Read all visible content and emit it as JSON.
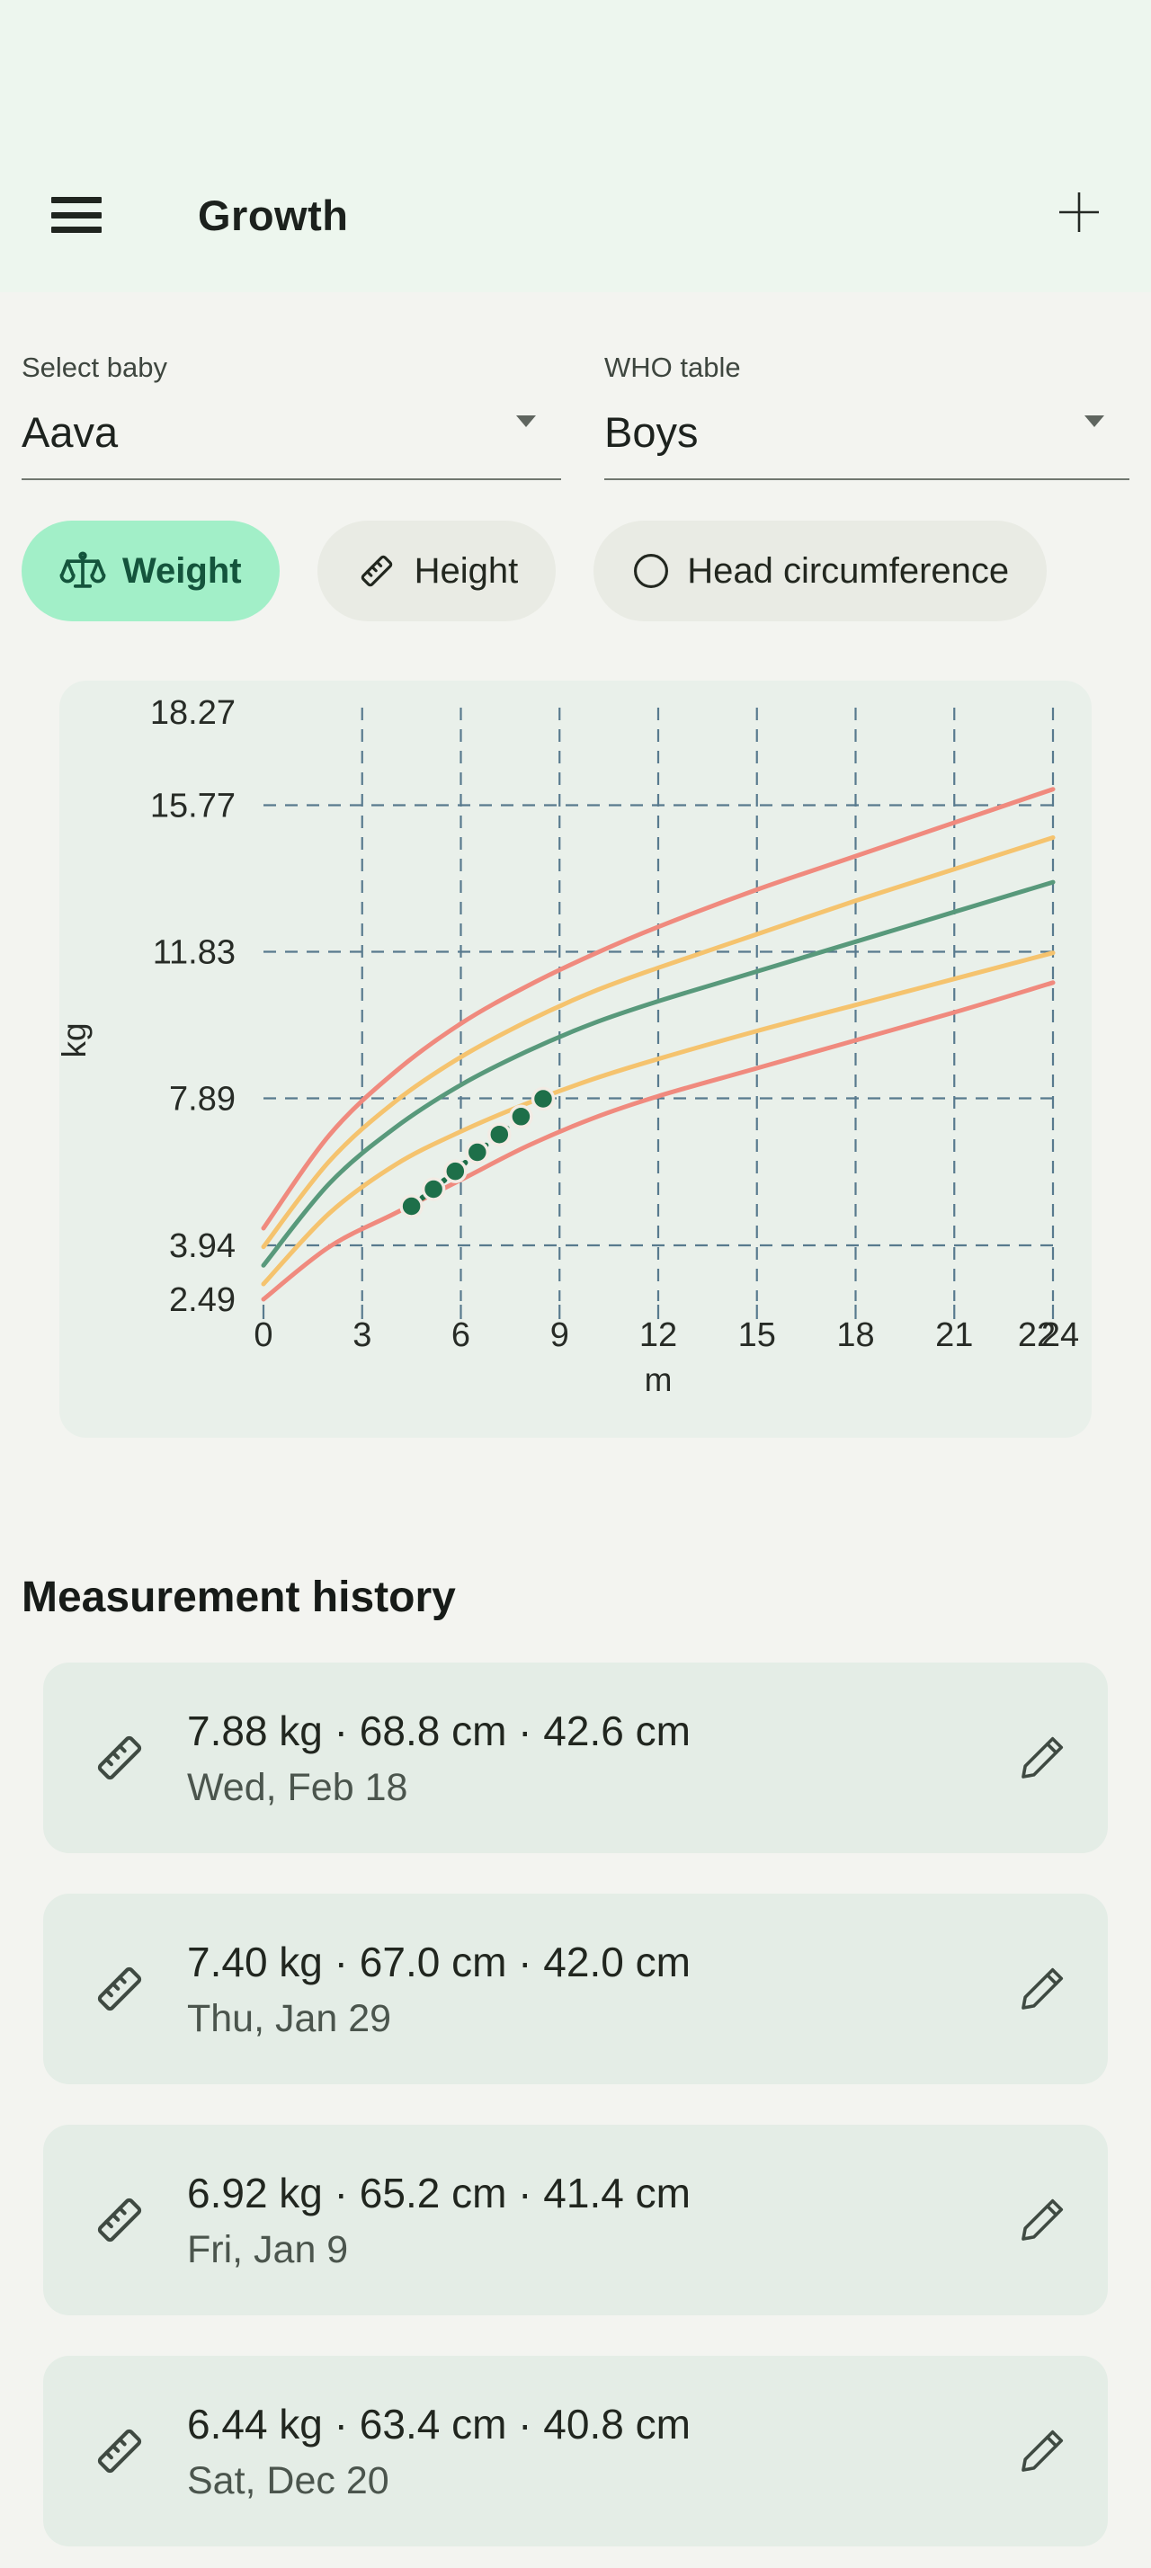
{
  "app": {
    "title": "Growth"
  },
  "selectors": {
    "baby": {
      "label": "Select baby",
      "value": "Aava"
    },
    "table": {
      "label": "WHO table",
      "value": "Boys"
    }
  },
  "tabs": [
    {
      "id": "weight",
      "label": "Weight",
      "selected": true
    },
    {
      "id": "height",
      "label": "Height",
      "selected": false
    },
    {
      "id": "head",
      "label": "Head circumference",
      "selected": false
    }
  ],
  "history": {
    "title": "Measurement history",
    "items": [
      {
        "summary": "7.88 kg · 68.8 cm · 42.6 cm",
        "date": "Wed, Feb 18"
      },
      {
        "summary": "7.40 kg · 67.0 cm · 42.0 cm",
        "date": "Thu, Jan 29"
      },
      {
        "summary": "6.92 kg · 65.2 cm · 41.4 cm",
        "date": "Fri, Jan 9"
      },
      {
        "summary": "6.44 kg · 63.4 cm · 40.8 cm",
        "date": "Sat, Dec 20"
      }
    ]
  },
  "theme": {
    "header_bg": "#edf6ee",
    "page_bg": "#f3f4f0",
    "chart_card_bg": "#e9f0ea",
    "list_card_bg": "#e4ede6",
    "chip_selected_bg": "#a2efc8",
    "chip_selected_text": "#14543c"
  },
  "chart_data": {
    "type": "line",
    "xlabel": "m",
    "ylabel": "kg",
    "xlim": [
      0,
      24
    ],
    "ylim": [
      2.49,
      18.27
    ],
    "x_ticks": [
      0,
      3,
      6,
      9,
      12,
      15,
      18,
      21,
      22,
      24
    ],
    "y_ticks": [
      18.27,
      15.77,
      11.83,
      7.89,
      3.94,
      2.49
    ],
    "grid": "dashed",
    "grid_color": "#587a8e",
    "series": [
      {
        "name": "percentile-upper-red",
        "color": "#f08a7e",
        "x": [
          0,
          2,
          4,
          6,
          8,
          10,
          12,
          15,
          18,
          21,
          24
        ],
        "y": [
          4.4,
          6.9,
          8.6,
          9.9,
          10.9,
          11.75,
          12.5,
          13.5,
          14.4,
          15.3,
          16.2
        ]
      },
      {
        "name": "percentile-upper-yellow",
        "color": "#f5c36e",
        "x": [
          0,
          2,
          4,
          6,
          8,
          10,
          12,
          15,
          18,
          21,
          24
        ],
        "y": [
          3.9,
          6.2,
          7.8,
          9.0,
          9.95,
          10.75,
          11.4,
          12.3,
          13.2,
          14.05,
          14.9
        ]
      },
      {
        "name": "percentile-median-green",
        "color": "#58997b",
        "x": [
          0,
          2,
          4,
          6,
          8,
          10,
          12,
          15,
          18,
          21,
          24
        ],
        "y": [
          3.4,
          5.6,
          7.1,
          8.25,
          9.15,
          9.9,
          10.5,
          11.3,
          12.1,
          12.9,
          13.7
        ]
      },
      {
        "name": "percentile-lower-yellow",
        "color": "#f5c36e",
        "x": [
          0,
          2,
          4,
          6,
          8,
          10,
          12,
          15,
          18,
          21,
          24
        ],
        "y": [
          2.9,
          4.8,
          6.1,
          7.0,
          7.75,
          8.4,
          8.95,
          9.7,
          10.4,
          11.1,
          11.8
        ]
      },
      {
        "name": "percentile-lower-red",
        "color": "#f08a7e",
        "x": [
          0,
          2,
          4,
          6,
          8,
          10,
          12,
          15,
          18,
          21,
          24
        ],
        "y": [
          2.49,
          3.9,
          4.8,
          5.7,
          6.6,
          7.35,
          7.95,
          8.7,
          9.45,
          10.2,
          11.0
        ]
      }
    ],
    "measurements": {
      "name": "baby-weight-points",
      "color": "#1e6f49",
      "x": [
        4.5,
        5.17,
        5.83,
        6.5,
        7.17,
        7.83,
        8.5
      ],
      "y": [
        4.99,
        5.45,
        5.93,
        6.44,
        6.92,
        7.4,
        7.88
      ]
    }
  }
}
